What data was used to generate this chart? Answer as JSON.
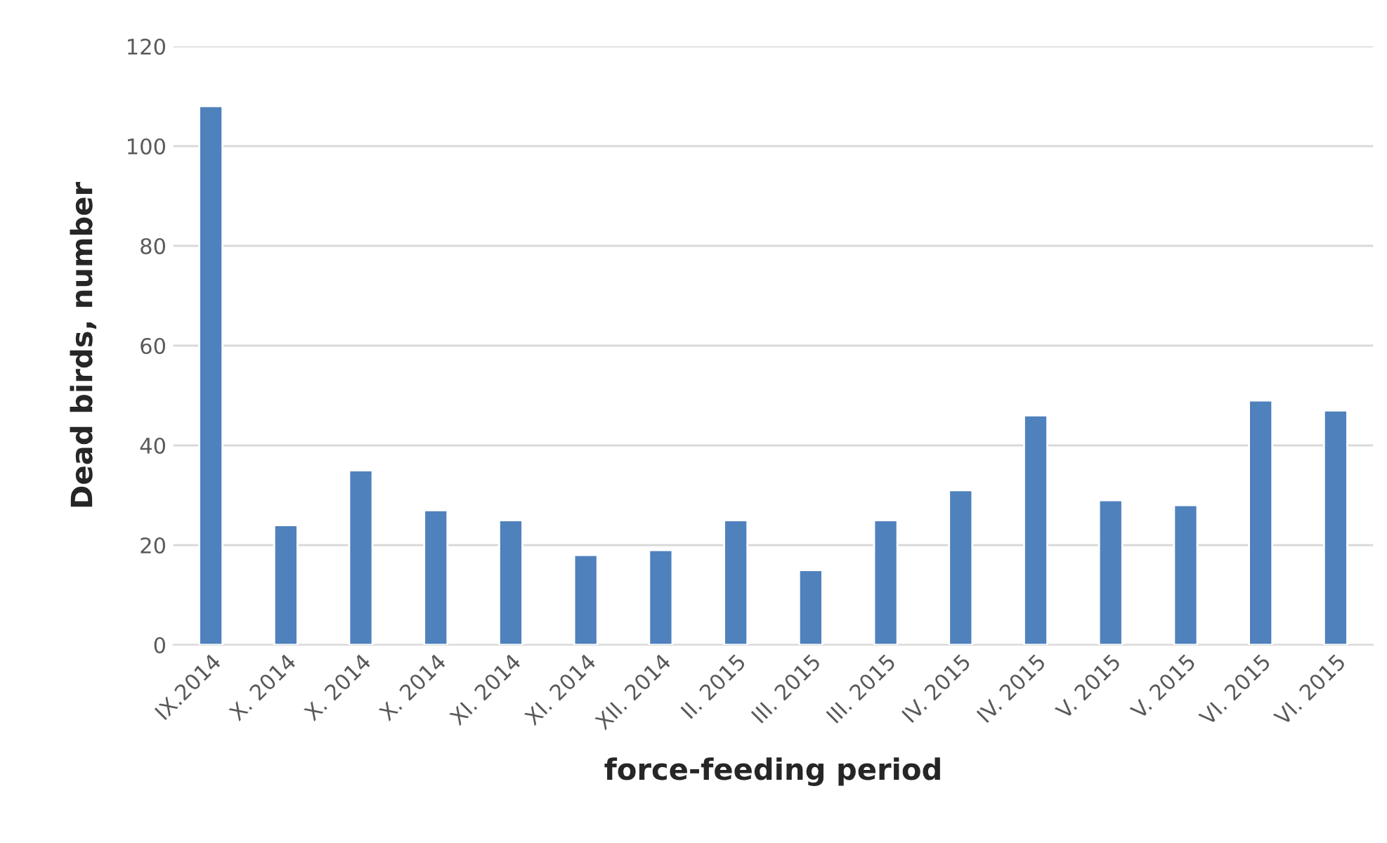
{
  "chart_data": {
    "type": "bar",
    "xlabel": "force-feeding period",
    "ylabel": "Dead birds, number",
    "categories": [
      "IX.2014",
      "X. 2014",
      "X. 2014",
      "X. 2014",
      "XI. 2014",
      "XI. 2014",
      "XII. 2014",
      "II. 2015",
      "III. 2015",
      "III. 2015",
      "IV. 2015",
      "IV. 2015",
      "V. 2015",
      "V. 2015",
      "VI. 2015",
      "VI. 2015"
    ],
    "values": [
      108,
      24,
      35,
      27,
      25,
      18,
      19,
      25,
      15,
      25,
      31,
      46,
      29,
      28,
      49,
      47
    ],
    "color": "#4f81bd",
    "ylim": [
      0,
      120
    ],
    "yticks": [
      0,
      20,
      40,
      60,
      80,
      100,
      120
    ],
    "grid": "y"
  }
}
